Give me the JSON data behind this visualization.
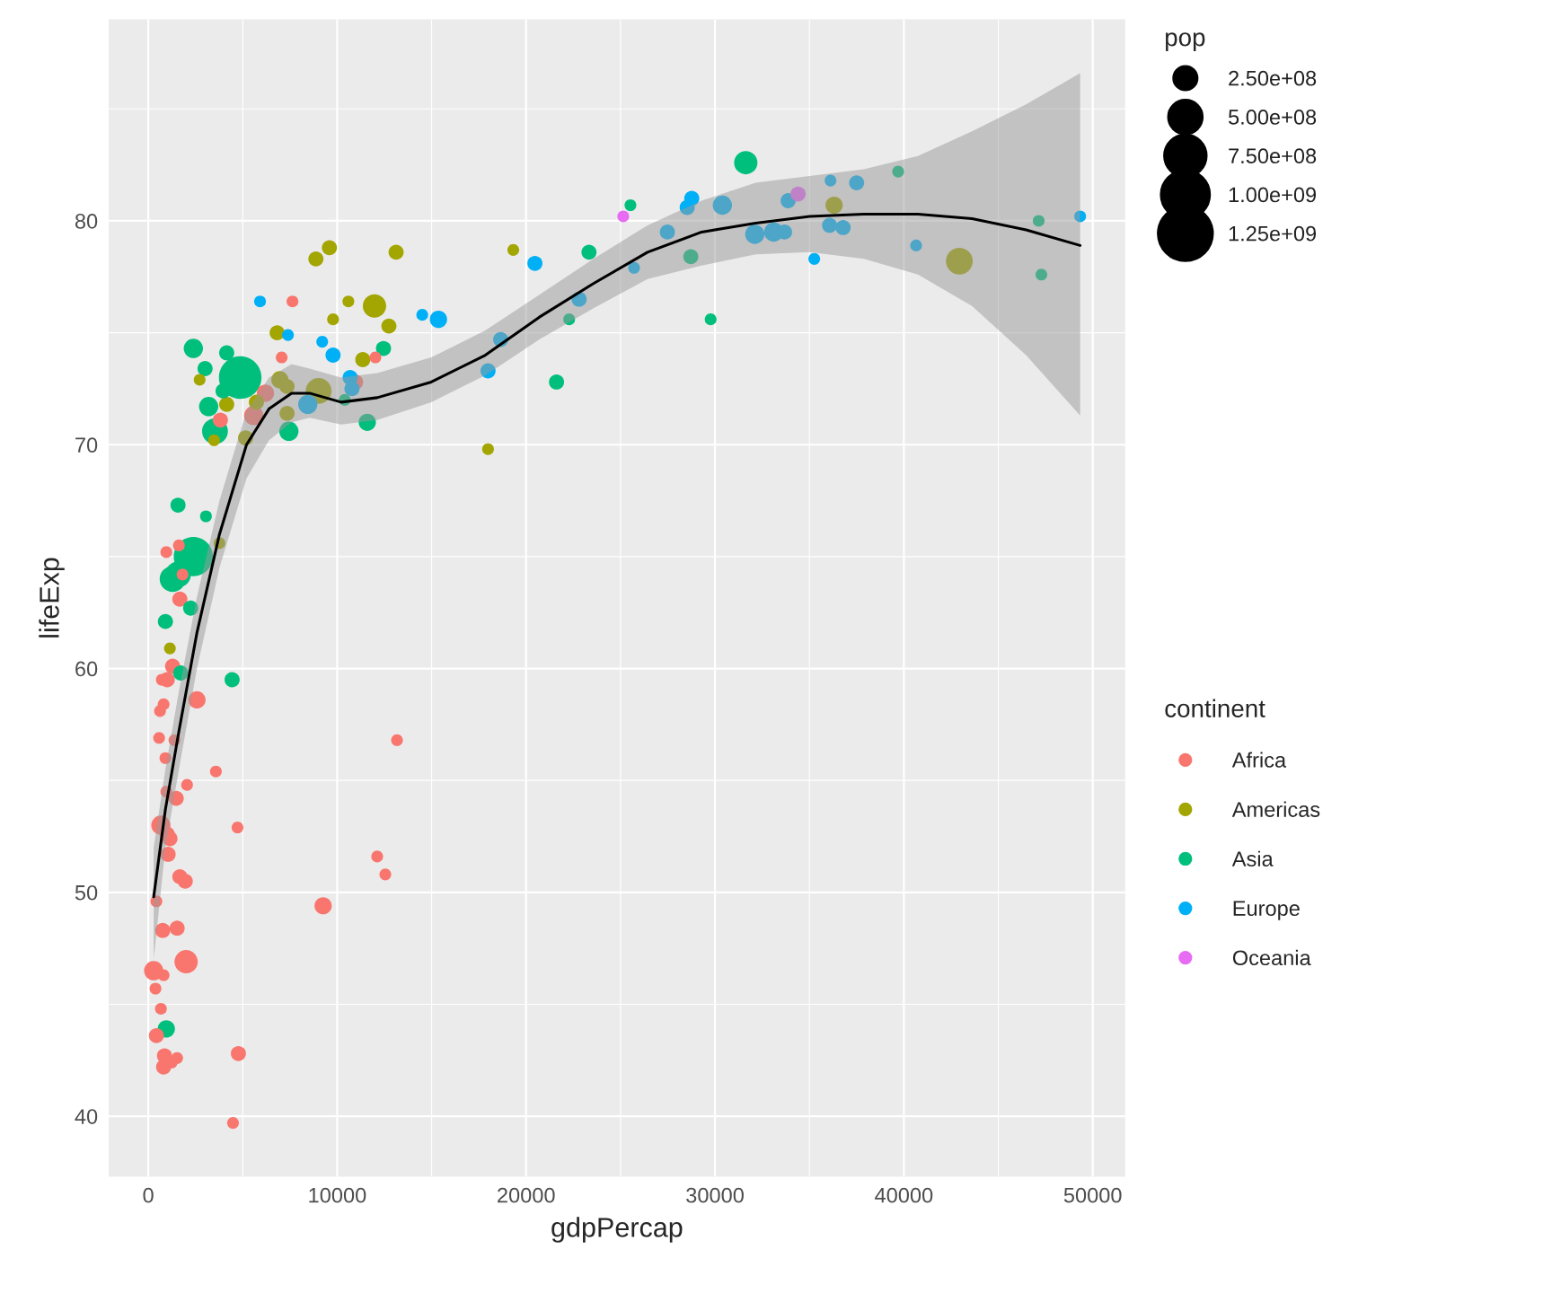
{
  "chart_data": {
    "type": "bubble",
    "xlabel": "gdpPercap",
    "ylabel": "lifeExp",
    "legend_title": "continent",
    "annotations": [
      "pop"
    ],
    "xlim": [
      -2099,
      51718
    ],
    "ylim": [
      37.3,
      89.0
    ],
    "xticks": [
      0,
      10000,
      20000,
      30000,
      40000,
      50000
    ],
    "yticks": [
      40,
      50,
      60,
      70,
      80
    ],
    "grid": true,
    "legend": "right",
    "marker": "circle",
    "size_legend": [
      {
        "value": 250000000,
        "label": "2.50e+08"
      },
      {
        "value": 500000000,
        "label": "5.00e+08"
      },
      {
        "value": 750000000,
        "label": "7.50e+08"
      },
      {
        "value": 1000000000,
        "label": "1.00e+09"
      },
      {
        "value": 1250000000,
        "label": "1.25e+09"
      }
    ],
    "series": [
      {
        "name": "Africa",
        "color": "#f8766d",
        "x": [
          429,
          286,
          382,
          429,
          668,
          811,
          811,
          859,
          1240,
          1527,
          2004,
          1527,
          763,
          1956,
          1670,
          1050,
          1145,
          1002,
          668,
          1479,
          954,
          2052,
          907,
          1384,
          573,
          3578,
          620,
          811,
          2576,
          716,
          1002,
          1288,
          1670,
          1813,
          1622,
          954,
          4723,
          4771,
          4485,
          9256,
          13168,
          12118,
          12548,
          5582,
          3817,
          6202,
          7061,
          7634,
          10973,
          12023
        ],
        "values": [
          49.6,
          46.5,
          45.7,
          43.6,
          44.8,
          46.3,
          42.2,
          42.7,
          42.4,
          42.6,
          46.9,
          48.4,
          48.3,
          50.5,
          50.7,
          51.7,
          52.4,
          52.6,
          53.0,
          54.2,
          54.5,
          54.8,
          56.0,
          56.8,
          56.9,
          55.4,
          58.1,
          58.4,
          58.6,
          59.5,
          59.5,
          60.1,
          63.1,
          64.2,
          65.5,
          65.2,
          52.9,
          42.8,
          39.7,
          49.4,
          56.8,
          51.6,
          50.8,
          71.3,
          71.1,
          72.3,
          73.9,
          76.4,
          72.8,
          73.9
        ],
        "sizes": [
          56000000,
          150000000,
          56000000,
          92000000,
          56000000,
          56000000,
          92000000,
          92000000,
          56000000,
          56000000,
          220000000,
          92000000,
          92000000,
          92000000,
          92000000,
          92000000,
          92000000,
          92000000,
          150000000,
          92000000,
          56000000,
          56000000,
          56000000,
          56000000,
          56000000,
          56000000,
          56000000,
          56000000,
          120000000,
          56000000,
          92000000,
          92000000,
          92000000,
          56000000,
          56000000,
          56000000,
          56000000,
          92000000,
          56000000,
          120000000,
          56000000,
          56000000,
          56000000,
          150000000,
          92000000,
          120000000,
          56000000,
          56000000,
          92000000,
          56000000
        ]
      },
      {
        "name": "Americas",
        "color": "#a3a500",
        "x": [
          1145,
          3769,
          3483,
          2719,
          4151,
          5153,
          5725,
          6822,
          6965,
          7347,
          7347,
          9017,
          8874,
          9590,
          9781,
          10592,
          11356,
          11975,
          12738,
          13120,
          17987,
          19323,
          36307,
          42939
        ],
        "values": [
          60.9,
          65.6,
          70.2,
          72.9,
          71.8,
          70.3,
          71.9,
          75.0,
          72.9,
          72.6,
          71.4,
          72.4,
          78.3,
          78.8,
          75.6,
          76.4,
          73.8,
          76.2,
          75.3,
          78.6,
          69.8,
          78.7,
          80.7,
          78.2
        ],
        "sizes": [
          56000000,
          56000000,
          56000000,
          56000000,
          92000000,
          92000000,
          92000000,
          92000000,
          120000000,
          92000000,
          92000000,
          270000000,
          92000000,
          92000000,
          56000000,
          56000000,
          92000000,
          220000000,
          92000000,
          92000000,
          56000000,
          56000000,
          120000000,
          290000000
        ]
      },
      {
        "name": "Asia",
        "color": "#00bf7d",
        "x": [
          954,
          907,
          1575,
          2243,
          1718,
          4437,
          3053,
          1288,
          1575,
          2386,
          3531,
          3196,
          2386,
          3006,
          4151,
          3960,
          4866,
          7443,
          10401,
          11594,
          12452,
          21613,
          22281,
          23331,
          25526,
          28722,
          29771,
          31632,
          39696,
          47138,
          47281
        ],
        "values": [
          43.9,
          62.1,
          67.3,
          62.7,
          59.8,
          59.5,
          66.8,
          64.0,
          64.2,
          65.0,
          70.6,
          71.7,
          74.3,
          73.4,
          74.1,
          72.4,
          73.0,
          70.6,
          72.0,
          71.0,
          74.3,
          72.8,
          75.6,
          78.6,
          80.7,
          78.4,
          75.6,
          82.6,
          82.2,
          80.0,
          77.6
        ],
        "sizes": [
          120000000,
          92000000,
          92000000,
          92000000,
          92000000,
          92000000,
          56000000,
          270000000,
          270000000,
          620000000,
          270000000,
          150000000,
          150000000,
          92000000,
          92000000,
          92000000,
          730000000,
          150000000,
          56000000,
          120000000,
          92000000,
          92000000,
          56000000,
          92000000,
          56000000,
          92000000,
          56000000,
          220000000,
          56000000,
          56000000,
          56000000
        ]
      },
      {
        "name": "Europe",
        "color": "#00b0f6",
        "x": [
          5916,
          7395,
          9208,
          9781,
          8445,
          10687,
          10783,
          14504,
          15362,
          17987,
          18655,
          20468,
          22806,
          25717,
          27481,
          28531,
          28770,
          30392,
          32109,
          33111,
          33683,
          33874,
          35258,
          36117,
          36069,
          36785,
          37500,
          40649,
          49333
        ],
        "values": [
          76.4,
          74.9,
          74.6,
          74.0,
          71.8,
          73.0,
          72.5,
          75.8,
          75.6,
          73.3,
          74.7,
          78.1,
          76.5,
          77.9,
          79.5,
          80.6,
          81.0,
          80.7,
          79.4,
          79.5,
          79.5,
          80.9,
          78.3,
          81.8,
          79.8,
          79.7,
          81.7,
          78.9,
          80.2
        ],
        "sizes": [
          56000000,
          56000000,
          56000000,
          92000000,
          150000000,
          92000000,
          92000000,
          56000000,
          120000000,
          92000000,
          92000000,
          92000000,
          92000000,
          56000000,
          92000000,
          92000000,
          92000000,
          150000000,
          150000000,
          150000000,
          92000000,
          92000000,
          56000000,
          56000000,
          92000000,
          92000000,
          92000000,
          56000000,
          56000000
        ]
      },
      {
        "name": "Oceania",
        "color": "#e76bf3",
        "x": [
          25144,
          34400
        ],
        "values": [
          80.2,
          81.2
        ],
        "sizes": [
          56000000,
          92000000
        ]
      },
      {
        "type": "line",
        "color": "#000000",
        "marker": "none",
        "x": [
          286,
          906,
          1622,
          2576,
          3769,
          5200,
          6393,
          7586,
          8540,
          10210,
          12118,
          14981,
          17843,
          20706,
          23569,
          26431,
          29294,
          32156,
          35019,
          37882,
          40744,
          43607,
          46469,
          49332
        ],
        "values": [
          49.8,
          53.7,
          57.2,
          61.6,
          66.0,
          70.0,
          71.6,
          72.3,
          72.3,
          71.9,
          72.1,
          72.8,
          74.0,
          75.7,
          77.2,
          78.6,
          79.5,
          79.9,
          80.2,
          80.3,
          80.3,
          80.1,
          79.6,
          78.9
        ],
        "lower": [
          47.0,
          52.0,
          55.5,
          60.0,
          64.5,
          68.5,
          70.2,
          71.0,
          71.2,
          70.9,
          71.1,
          71.9,
          73.1,
          74.7,
          76.1,
          77.4,
          78.0,
          78.5,
          78.6,
          78.3,
          77.6,
          76.2,
          74.0,
          71.3
        ],
        "upper": [
          52.0,
          55.5,
          59.0,
          63.2,
          67.5,
          71.5,
          73.0,
          73.6,
          73.4,
          73.0,
          73.2,
          73.9,
          75.1,
          76.7,
          78.3,
          79.8,
          80.9,
          81.7,
          82.0,
          82.3,
          82.9,
          84.0,
          85.2,
          86.6
        ]
      }
    ]
  }
}
